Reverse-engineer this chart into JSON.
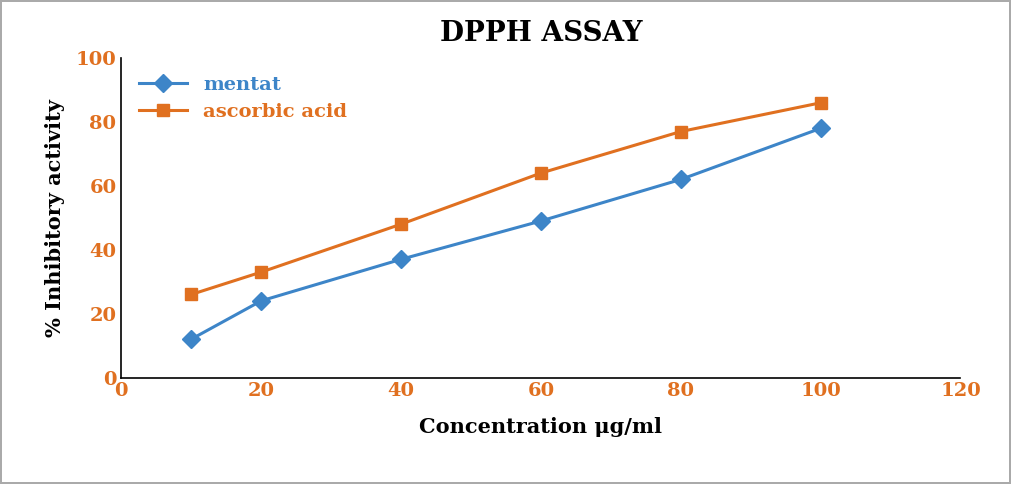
{
  "title": "DPPH ASSAY",
  "xlabel": "Concentration μg/ml",
  "ylabel": "% Inhibitory activity",
  "x": [
    10,
    20,
    40,
    60,
    80,
    100
  ],
  "mentat_y": [
    12,
    24,
    37,
    49,
    62,
    78
  ],
  "ascorbic_y": [
    26,
    33,
    48,
    64,
    77,
    86
  ],
  "mentat_color": "#3d85c8",
  "ascorbic_color": "#e07020",
  "xlim": [
    0,
    120
  ],
  "ylim": [
    0,
    100
  ],
  "xticks": [
    0,
    20,
    40,
    60,
    80,
    100,
    120
  ],
  "yticks": [
    0,
    20,
    40,
    60,
    80,
    100
  ],
  "title_fontsize": 20,
  "label_fontsize": 15,
  "tick_fontsize": 14,
  "legend_fontsize": 14,
  "linewidth": 2.2,
  "markersize": 9,
  "background_color": "#ffffff",
  "tick_color": "#e07020",
  "border_color": "#aaaaaa"
}
